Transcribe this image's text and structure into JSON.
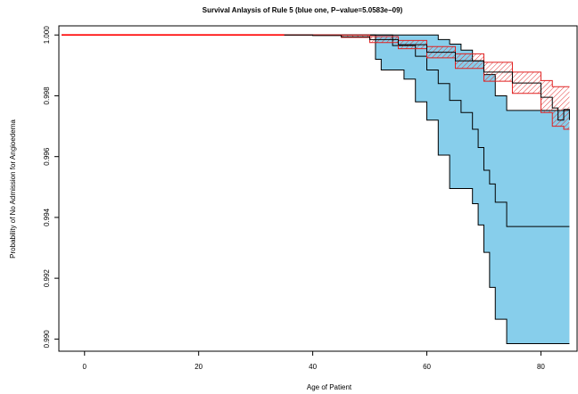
{
  "chart_data": {
    "type": "line",
    "title": "Survival Anlaysis of Rule 5 (blue one, P−value=5.0583e−09)",
    "xlabel": "Age of Patient",
    "ylabel": "Probability of No Admission for Angioedema",
    "xlim": [
      -4.5,
      86.5
    ],
    "ylim": [
      0.9896,
      1.0003
    ],
    "grid": false,
    "legend": "none",
    "x_ticks": [
      0,
      20,
      40,
      60,
      80
    ],
    "x_tick_labels": [
      "0",
      "20",
      "40",
      "60",
      "80"
    ],
    "y_ticks": [
      0.99,
      0.992,
      0.994,
      0.996,
      0.998,
      1.0
    ],
    "y_tick_labels": [
      "0.990",
      "0.992",
      "0.994",
      "0.996",
      "0.998",
      "1.000"
    ],
    "series": [
      {
        "color": "#000000",
        "band_color": "#87CEEB",
        "band_style": "solid",
        "estimate": {
          "x": [
            -4,
            51,
            54,
            58,
            60,
            62,
            64,
            66,
            68,
            69,
            70,
            71,
            72,
            74,
            85
          ],
          "y": [
            1.0,
            1.0,
            0.99965,
            0.9993,
            0.99885,
            0.9984,
            0.99785,
            0.99745,
            0.9969,
            0.9963,
            0.99555,
            0.9951,
            0.9945,
            0.9937,
            0.9937
          ]
        },
        "upper": {
          "x": [
            -4,
            60,
            62,
            64,
            66,
            68,
            70,
            72,
            74,
            85
          ],
          "y": [
            1.0,
            1.0,
            0.99985,
            0.9997,
            0.9995,
            0.99915,
            0.9987,
            0.998,
            0.99752,
            0.99752
          ]
        },
        "lower": {
          "x": [
            -4,
            51,
            52,
            56,
            58,
            60,
            62,
            64,
            66,
            68,
            69,
            70,
            71,
            72,
            74,
            85
          ],
          "y": [
            1.0,
            0.9992,
            0.99885,
            0.99855,
            0.9978,
            0.9972,
            0.99605,
            0.99495,
            0.99495,
            0.99445,
            0.99375,
            0.99285,
            0.9917,
            0.99065,
            0.98985,
            0.98985
          ]
        }
      },
      {
        "color": "#000000",
        "band_color": "#E02020",
        "band_style": "hatched",
        "estimate": {
          "x": [
            -4,
            30,
            40,
            45,
            50,
            55,
            60,
            65,
            70,
            75,
            80,
            82,
            83,
            84,
            85
          ],
          "y": [
            1.0,
            1.0,
            0.99998,
            0.99994,
            0.99985,
            0.99968,
            0.99943,
            0.99915,
            0.99878,
            0.99842,
            0.99795,
            0.9976,
            0.9972,
            0.99755,
            0.9972
          ]
        },
        "upper": {
          "x": [
            -4,
            35,
            45,
            50,
            55,
            60,
            65,
            70,
            75,
            80,
            82,
            84,
            85
          ],
          "y": [
            1.0,
            1.0,
            1.0,
            0.99995,
            0.99982,
            0.99962,
            0.99938,
            0.9991,
            0.99878,
            0.9985,
            0.9983,
            0.9983,
            0.9983
          ]
        },
        "lower": {
          "x": [
            -4,
            35,
            45,
            50,
            55,
            60,
            65,
            70,
            75,
            80,
            82,
            84,
            85
          ],
          "y": [
            1.0,
            1.0,
            0.99992,
            0.99975,
            0.99955,
            0.99925,
            0.9989,
            0.99848,
            0.99808,
            0.99745,
            0.997,
            0.9969,
            0.9969
          ]
        }
      }
    ],
    "highlight_line": {
      "color": "#FF0000",
      "x": [
        -4,
        35
      ],
      "y": [
        1.0,
        1.0
      ]
    }
  }
}
